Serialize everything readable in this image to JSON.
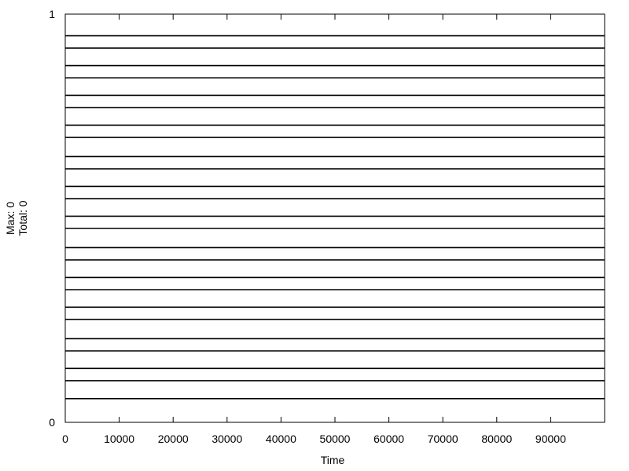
{
  "chart_data": {
    "type": "line",
    "xlabel": "Time",
    "ylabel_lines": [
      "Max: 0",
      "Total: 0"
    ],
    "xlim": [
      0,
      100000
    ],
    "ylim": [
      0,
      1
    ],
    "xticks": [
      0,
      10000,
      20000,
      30000,
      40000,
      50000,
      60000,
      70000,
      80000,
      90000
    ],
    "yticks": [
      0,
      1
    ],
    "grid": false,
    "legend": "none",
    "line_color": "#000000",
    "series": [
      {
        "values": [
          0.058,
          0.058
        ]
      },
      {
        "values": [
          0.102,
          0.102
        ]
      },
      {
        "values": [
          0.132,
          0.132
        ]
      },
      {
        "values": [
          0.175,
          0.175
        ]
      },
      {
        "values": [
          0.205,
          0.205
        ]
      },
      {
        "values": [
          0.252,
          0.252
        ]
      },
      {
        "values": [
          0.282,
          0.282
        ]
      },
      {
        "values": [
          0.325,
          0.325
        ]
      },
      {
        "values": [
          0.355,
          0.355
        ]
      },
      {
        "values": [
          0.398,
          0.398
        ]
      },
      {
        "values": [
          0.428,
          0.428
        ]
      },
      {
        "values": [
          0.475,
          0.475
        ]
      },
      {
        "values": [
          0.505,
          0.505
        ]
      },
      {
        "values": [
          0.548,
          0.548
        ]
      },
      {
        "values": [
          0.578,
          0.578
        ]
      },
      {
        "values": [
          0.621,
          0.621
        ]
      },
      {
        "values": [
          0.651,
          0.651
        ]
      },
      {
        "values": [
          0.698,
          0.698
        ]
      },
      {
        "values": [
          0.728,
          0.728
        ]
      },
      {
        "values": [
          0.771,
          0.771
        ]
      },
      {
        "values": [
          0.801,
          0.801
        ]
      },
      {
        "values": [
          0.844,
          0.844
        ]
      },
      {
        "values": [
          0.874,
          0.874
        ]
      },
      {
        "values": [
          0.917,
          0.917
        ]
      },
      {
        "values": [
          0.947,
          0.947
        ]
      }
    ]
  }
}
